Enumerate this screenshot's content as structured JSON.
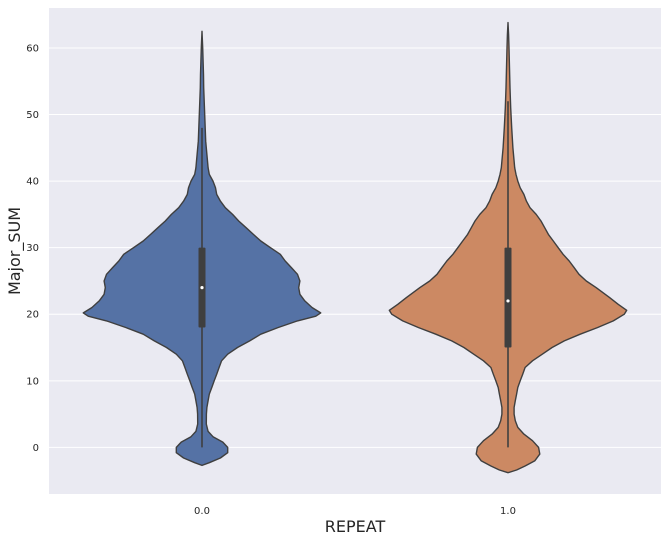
{
  "chart_data": {
    "type": "violin",
    "title": "",
    "xlabel": "REPEAT",
    "ylabel": "Major_SUM",
    "categories": [
      "0.0",
      "1.0"
    ],
    "ylim": [
      -7,
      66
    ],
    "yticks": [
      0,
      10,
      20,
      30,
      40,
      50,
      60
    ],
    "grid": true,
    "background": "#EAEAF2",
    "series": [
      {
        "category": "0.0",
        "color": "#5572A5",
        "box": {
          "whisker_low": 0,
          "q1": 18,
          "median": 24,
          "q3": 30,
          "whisker_high": 48
        },
        "density": [
          [
            -2.7,
            0.0
          ],
          [
            -2.3,
            0.06
          ],
          [
            -1.6,
            0.15
          ],
          [
            -0.8,
            0.21
          ],
          [
            0.0,
            0.21
          ],
          [
            0.8,
            0.17
          ],
          [
            1.6,
            0.09
          ],
          [
            2.4,
            0.05
          ],
          [
            3.5,
            0.035
          ],
          [
            5.0,
            0.036
          ],
          [
            6.0,
            0.04
          ],
          [
            7.0,
            0.05
          ],
          [
            8.0,
            0.06
          ],
          [
            9.0,
            0.08
          ],
          [
            10.0,
            0.1
          ],
          [
            11.0,
            0.12
          ],
          [
            12.0,
            0.14
          ],
          [
            13.0,
            0.16
          ],
          [
            14.0,
            0.21
          ],
          [
            15.0,
            0.29
          ],
          [
            16.0,
            0.39
          ],
          [
            17.0,
            0.48
          ],
          [
            18.0,
            0.62
          ],
          [
            19.0,
            0.78
          ],
          [
            19.7,
            0.93
          ],
          [
            20.2,
            0.97
          ],
          [
            21.0,
            0.9
          ],
          [
            22.0,
            0.84
          ],
          [
            23.0,
            0.8
          ],
          [
            24.0,
            0.79
          ],
          [
            25.0,
            0.8
          ],
          [
            26.0,
            0.78
          ],
          [
            27.0,
            0.73
          ],
          [
            28.0,
            0.68
          ],
          [
            29.0,
            0.64
          ],
          [
            30.0,
            0.56
          ],
          [
            31.0,
            0.48
          ],
          [
            32.0,
            0.42
          ],
          [
            33.0,
            0.36
          ],
          [
            34.0,
            0.3
          ],
          [
            35.0,
            0.25
          ],
          [
            36.0,
            0.19
          ],
          [
            37.0,
            0.15
          ],
          [
            38.0,
            0.12
          ],
          [
            39.0,
            0.11
          ],
          [
            40.0,
            0.09
          ],
          [
            41.0,
            0.06
          ],
          [
            42.0,
            0.05
          ],
          [
            43.0,
            0.045
          ],
          [
            44.0,
            0.04
          ],
          [
            46.0,
            0.03
          ],
          [
            48.0,
            0.026
          ],
          [
            50.0,
            0.022
          ],
          [
            52.0,
            0.018
          ],
          [
            54.0,
            0.014
          ],
          [
            56.0,
            0.012
          ],
          [
            58.0,
            0.009
          ],
          [
            60.0,
            0.006
          ],
          [
            62.5,
            0.0
          ]
        ]
      },
      {
        "category": "1.0",
        "color": "#CC8963",
        "box": {
          "whisker_low": 0,
          "q1": 15,
          "median": 22,
          "q3": 30,
          "whisker_high": 52
        },
        "density": [
          [
            -3.8,
            0.0
          ],
          [
            -3.4,
            0.07
          ],
          [
            -2.8,
            0.14
          ],
          [
            -2.0,
            0.22
          ],
          [
            -1.0,
            0.26
          ],
          [
            0.0,
            0.25
          ],
          [
            1.0,
            0.2
          ],
          [
            2.0,
            0.13
          ],
          [
            3.0,
            0.08
          ],
          [
            4.0,
            0.06
          ],
          [
            5.0,
            0.05
          ],
          [
            6.0,
            0.05
          ],
          [
            7.0,
            0.06
          ],
          [
            8.0,
            0.07
          ],
          [
            9.0,
            0.08
          ],
          [
            10.0,
            0.1
          ],
          [
            11.0,
            0.12
          ],
          [
            12.0,
            0.14
          ],
          [
            13.0,
            0.2
          ],
          [
            14.0,
            0.28
          ],
          [
            15.0,
            0.36
          ],
          [
            16.0,
            0.46
          ],
          [
            17.0,
            0.59
          ],
          [
            18.0,
            0.73
          ],
          [
            19.0,
            0.86
          ],
          [
            20.0,
            0.95
          ],
          [
            20.6,
            0.97
          ],
          [
            21.5,
            0.9
          ],
          [
            22.5,
            0.83
          ],
          [
            24.0,
            0.72
          ],
          [
            25.0,
            0.64
          ],
          [
            26.0,
            0.58
          ],
          [
            27.0,
            0.54
          ],
          [
            28.0,
            0.5
          ],
          [
            29.0,
            0.45
          ],
          [
            30.0,
            0.41
          ],
          [
            31.0,
            0.37
          ],
          [
            32.0,
            0.33
          ],
          [
            33.0,
            0.3
          ],
          [
            34.0,
            0.27
          ],
          [
            35.0,
            0.23
          ],
          [
            36.0,
            0.18
          ],
          [
            37.0,
            0.15
          ],
          [
            38.0,
            0.13
          ],
          [
            39.0,
            0.1
          ],
          [
            40.0,
            0.08
          ],
          [
            41.0,
            0.065
          ],
          [
            42.0,
            0.055
          ],
          [
            43.0,
            0.05
          ],
          [
            45.0,
            0.04
          ],
          [
            48.0,
            0.03
          ],
          [
            51.0,
            0.022
          ],
          [
            54.0,
            0.016
          ],
          [
            57.0,
            0.012
          ],
          [
            60.0,
            0.008
          ],
          [
            62.0,
            0.005
          ],
          [
            63.8,
            0.0
          ]
        ]
      }
    ]
  }
}
